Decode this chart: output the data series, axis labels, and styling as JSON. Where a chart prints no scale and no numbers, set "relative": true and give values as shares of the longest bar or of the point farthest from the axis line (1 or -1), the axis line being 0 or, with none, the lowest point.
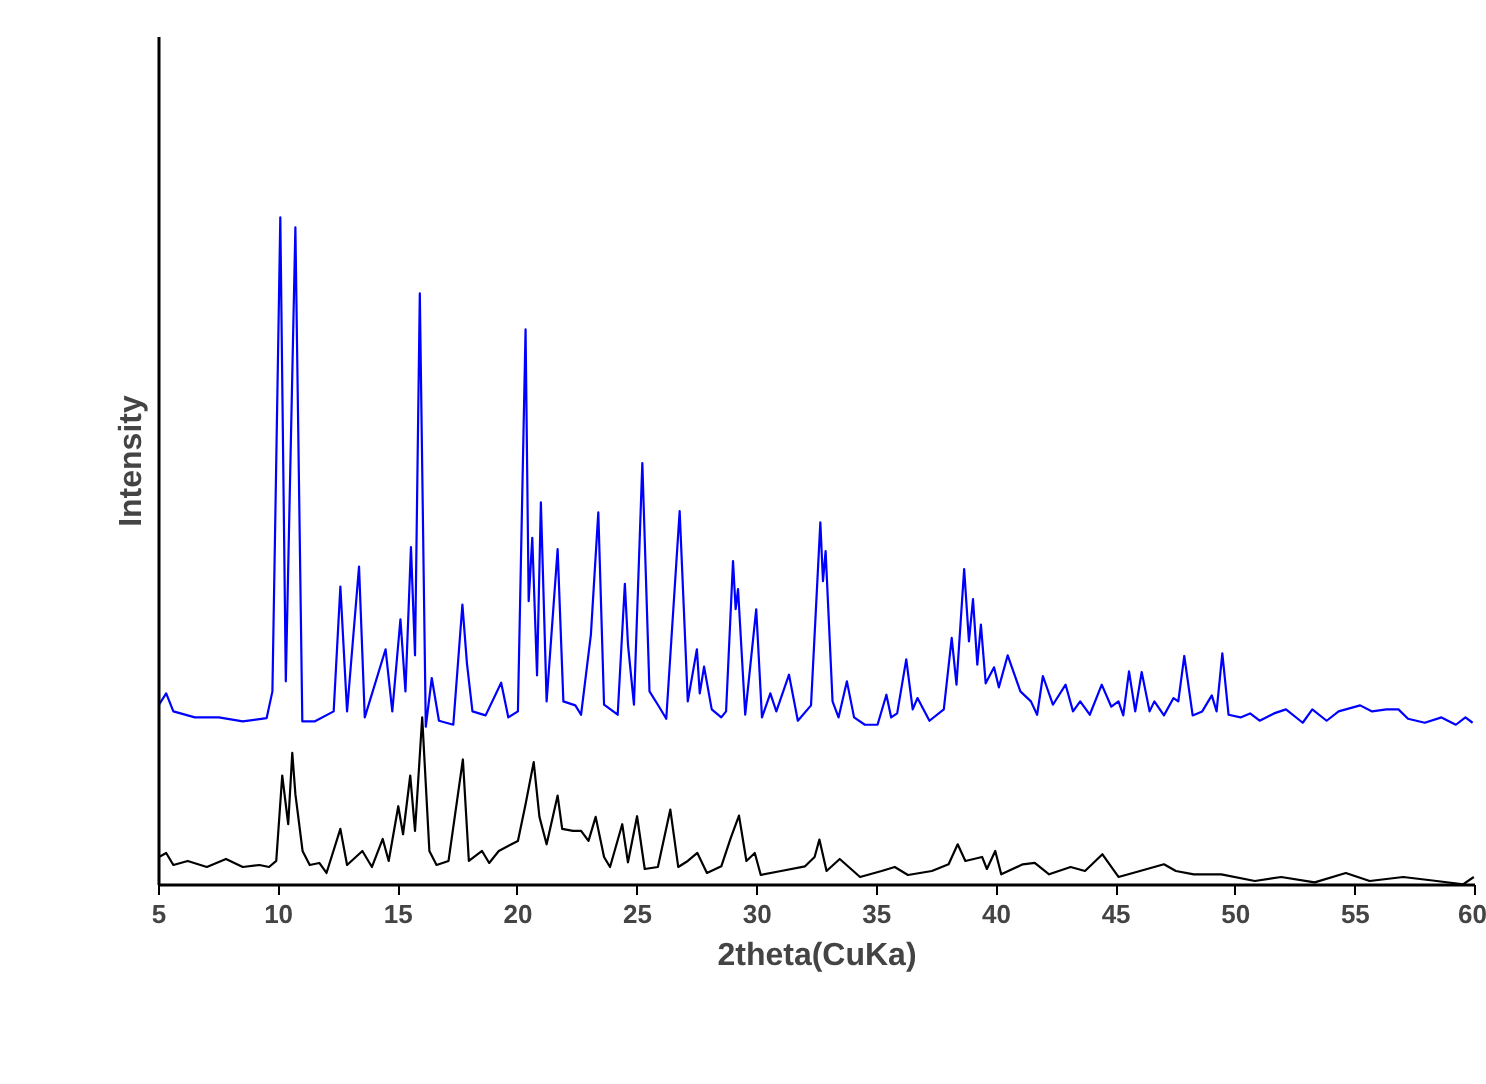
{
  "chart_data": {
    "type": "line",
    "relative": true,
    "xlabel": "2theta(CuKa)",
    "ylabel": "Intensity",
    "xlim": [
      5,
      60
    ],
    "xticks": [
      5,
      10,
      15,
      20,
      25,
      30,
      35,
      40,
      45,
      50,
      55,
      60
    ],
    "grid": false,
    "marker": "none",
    "line_style": "solid",
    "series": [
      {
        "color": "#0000ff",
        "x": [
          5.0,
          5.3,
          5.6,
          6.5,
          7.5,
          8.5,
          9.5,
          9.74,
          10.07,
          10.3,
          10.7,
          10.99,
          11.5,
          12.3,
          12.58,
          12.86,
          13.36,
          13.6,
          14.47,
          14.75,
          15.09,
          15.3,
          15.53,
          15.7,
          15.9,
          16.15,
          16.4,
          16.7,
          17.3,
          17.68,
          17.87,
          18.1,
          18.65,
          19.3,
          19.6,
          20.0,
          20.32,
          20.45,
          20.6,
          20.8,
          20.96,
          21.2,
          21.66,
          21.9,
          22.4,
          22.64,
          23.05,
          23.36,
          23.6,
          24.17,
          24.47,
          24.6,
          24.85,
          25.2,
          25.5,
          25.9,
          26.2,
          26.76,
          27.1,
          27.48,
          27.6,
          27.78,
          28.1,
          28.5,
          28.7,
          28.99,
          29.1,
          29.2,
          29.5,
          29.96,
          30.2,
          30.55,
          30.8,
          31.33,
          31.7,
          32.25,
          32.64,
          32.75,
          32.86,
          33.15,
          33.4,
          33.75,
          34.05,
          34.5,
          35.03,
          35.4,
          35.6,
          35.85,
          36.23,
          36.5,
          36.7,
          37.2,
          37.8,
          38.13,
          38.33,
          38.65,
          38.85,
          39.02,
          39.2,
          39.35,
          39.55,
          39.9,
          40.1,
          40.47,
          41.0,
          41.44,
          41.7,
          41.94,
          42.36,
          42.89,
          43.2,
          43.5,
          43.9,
          44.4,
          44.8,
          45.1,
          45.3,
          45.54,
          45.8,
          46.07,
          46.4,
          46.6,
          47.0,
          47.4,
          47.6,
          47.85,
          48.2,
          48.6,
          49.0,
          49.2,
          49.44,
          49.7,
          50.2,
          50.6,
          51.0,
          51.6,
          52.1,
          52.8,
          53.2,
          53.8,
          54.3,
          55.2,
          55.7,
          56.3,
          56.8,
          57.2,
          57.9,
          58.6,
          59.2,
          59.6,
          59.9
        ],
        "values": [
          0.27,
          0.287,
          0.26,
          0.251,
          0.251,
          0.245,
          0.25,
          0.29,
          1.0,
          0.305,
          0.985,
          0.245,
          0.245,
          0.26,
          0.447,
          0.26,
          0.477,
          0.251,
          0.353,
          0.26,
          0.398,
          0.29,
          0.506,
          0.344,
          0.886,
          0.237,
          0.31,
          0.246,
          0.24,
          0.42,
          0.332,
          0.26,
          0.254,
          0.303,
          0.251,
          0.26,
          0.832,
          0.425,
          0.52,
          0.314,
          0.573,
          0.275,
          0.503,
          0.275,
          0.269,
          0.255,
          0.375,
          0.558,
          0.27,
          0.255,
          0.451,
          0.36,
          0.27,
          0.632,
          0.29,
          0.267,
          0.249,
          0.56,
          0.275,
          0.353,
          0.287,
          0.327,
          0.263,
          0.251,
          0.26,
          0.485,
          0.413,
          0.443,
          0.255,
          0.413,
          0.251,
          0.287,
          0.26,
          0.315,
          0.246,
          0.269,
          0.543,
          0.455,
          0.5,
          0.275,
          0.251,
          0.305,
          0.251,
          0.24,
          0.24,
          0.285,
          0.251,
          0.257,
          0.338,
          0.263,
          0.28,
          0.246,
          0.263,
          0.37,
          0.3,
          0.473,
          0.365,
          0.428,
          0.33,
          0.39,
          0.302,
          0.326,
          0.296,
          0.344,
          0.29,
          0.275,
          0.255,
          0.313,
          0.27,
          0.3,
          0.26,
          0.275,
          0.255,
          0.3,
          0.267,
          0.275,
          0.254,
          0.32,
          0.26,
          0.319,
          0.26,
          0.275,
          0.254,
          0.28,
          0.275,
          0.343,
          0.254,
          0.26,
          0.284,
          0.26,
          0.347,
          0.255,
          0.251,
          0.257,
          0.246,
          0.257,
          0.263,
          0.243,
          0.263,
          0.246,
          0.26,
          0.269,
          0.26,
          0.263,
          0.263,
          0.249,
          0.243,
          0.251,
          0.24,
          0.251,
          0.243
        ]
      },
      {
        "color": "#000000",
        "x": [
          5.0,
          5.3,
          5.6,
          6.2,
          7.0,
          7.8,
          8.5,
          9.2,
          9.6,
          9.9,
          10.15,
          10.4,
          10.57,
          10.7,
          11.0,
          11.3,
          11.7,
          12.0,
          12.58,
          12.86,
          13.5,
          13.9,
          14.35,
          14.6,
          15.0,
          15.2,
          15.5,
          15.7,
          16.0,
          16.3,
          16.6,
          17.1,
          17.7,
          17.95,
          18.5,
          18.8,
          19.2,
          20.0,
          20.32,
          20.66,
          20.9,
          21.2,
          21.66,
          21.85,
          22.3,
          22.64,
          22.95,
          23.25,
          23.6,
          23.85,
          24.36,
          24.6,
          24.98,
          25.3,
          25.85,
          26.37,
          26.7,
          27.1,
          27.5,
          27.9,
          28.5,
          28.9,
          29.24,
          29.55,
          29.9,
          30.15,
          31.0,
          32.0,
          32.4,
          32.6,
          32.9,
          33.45,
          34.3,
          35.2,
          35.75,
          36.3,
          37.3,
          38.0,
          38.38,
          38.7,
          39.4,
          39.6,
          39.95,
          40.2,
          41.1,
          41.6,
          42.2,
          43.1,
          43.7,
          44.43,
          45.1,
          46.0,
          47.0,
          47.5,
          48.25,
          49.4,
          50.8,
          51.9,
          53.3,
          54.6,
          55.6,
          57.0,
          58.4,
          59.5,
          59.95
        ],
        "values": [
          0.042,
          0.048,
          0.03,
          0.036,
          0.027,
          0.039,
          0.027,
          0.03,
          0.027,
          0.036,
          0.164,
          0.091,
          0.198,
          0.136,
          0.051,
          0.03,
          0.033,
          0.018,
          0.084,
          0.03,
          0.051,
          0.027,
          0.069,
          0.036,
          0.118,
          0.076,
          0.164,
          0.081,
          0.251,
          0.051,
          0.03,
          0.036,
          0.188,
          0.036,
          0.051,
          0.033,
          0.051,
          0.066,
          0.121,
          0.184,
          0.102,
          0.061,
          0.134,
          0.084,
          0.081,
          0.081,
          0.066,
          0.102,
          0.042,
          0.027,
          0.091,
          0.034,
          0.103,
          0.024,
          0.027,
          0.113,
          0.027,
          0.036,
          0.048,
          0.018,
          0.028,
          0.071,
          0.104,
          0.036,
          0.048,
          0.015,
          0.021,
          0.028,
          0.042,
          0.068,
          0.021,
          0.039,
          0.012,
          0.021,
          0.027,
          0.015,
          0.021,
          0.031,
          0.061,
          0.036,
          0.042,
          0.024,
          0.051,
          0.016,
          0.031,
          0.033,
          0.016,
          0.027,
          0.021,
          0.046,
          0.012,
          0.021,
          0.031,
          0.021,
          0.016,
          0.016,
          0.006,
          0.012,
          0.004,
          0.018,
          0.006,
          0.012,
          0.006,
          0.001,
          0.012
        ]
      }
    ]
  }
}
